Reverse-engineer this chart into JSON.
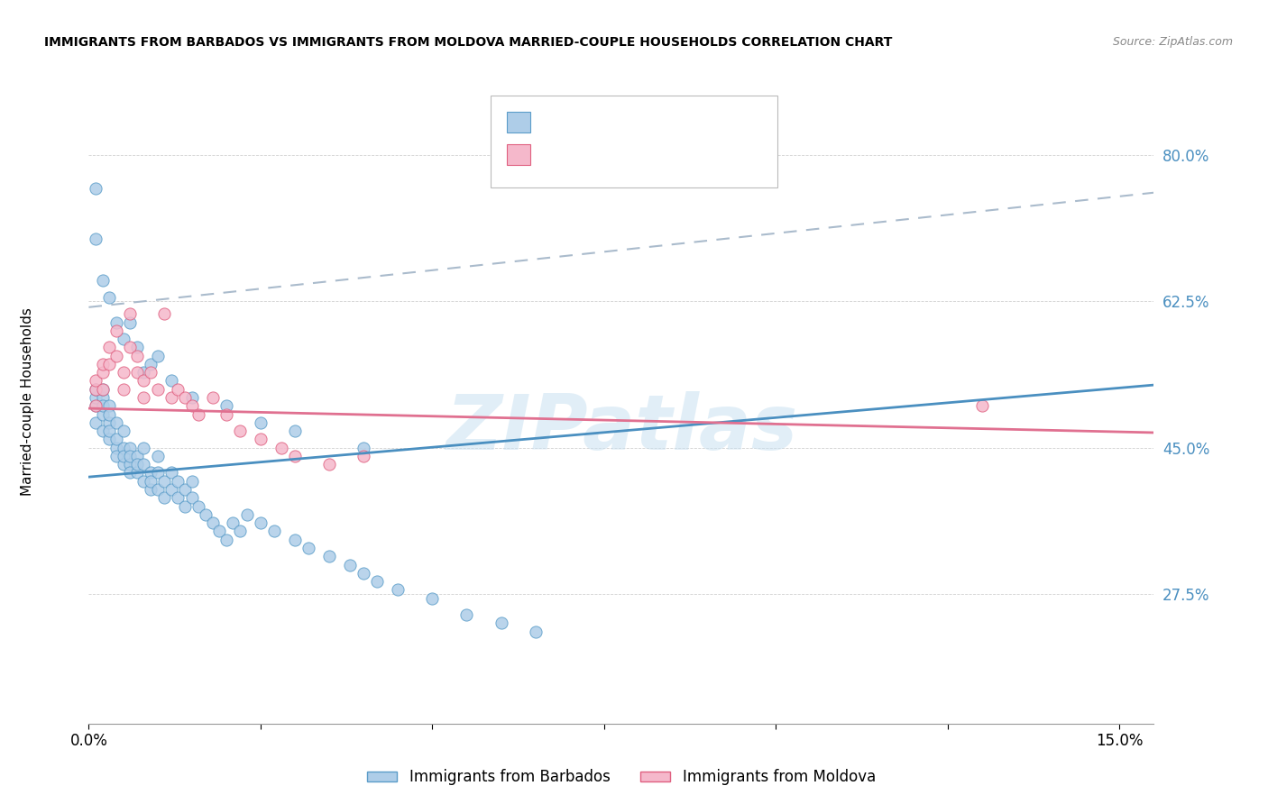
{
  "title": "IMMIGRANTS FROM BARBADOS VS IMMIGRANTS FROM MOLDOVA MARRIED-COUPLE HOUSEHOLDS CORRELATION CHART",
  "source": "Source: ZipAtlas.com",
  "ylabel": "Married-couple Households",
  "xlim": [
    0.0,
    0.155
  ],
  "ylim": [
    0.12,
    0.87
  ],
  "yticks": [
    0.275,
    0.45,
    0.625,
    0.8
  ],
  "ytick_labels": [
    "27.5%",
    "45.0%",
    "62.5%",
    "80.0%"
  ],
  "xticks": [
    0.0,
    0.025,
    0.05,
    0.075,
    0.1,
    0.125,
    0.15
  ],
  "xtick_labels": [
    "0.0%",
    "",
    "",
    "",
    "",
    "",
    "15.0%"
  ],
  "legend_label1": "Immigrants from Barbados",
  "legend_label2": "Immigrants from Moldova",
  "color_blue_fill": "#aecde8",
  "color_blue_edge": "#5b9dc9",
  "color_pink_fill": "#f5b8cb",
  "color_pink_edge": "#e06080",
  "color_blue_line": "#4a8fc0",
  "color_pink_line": "#e07090",
  "color_dashed": "#aabbcc",
  "color_ytick": "#4a8fc0",
  "watermark_color": "#c5dff0",
  "background": "#ffffff",
  "blue_line_x0": 0.0,
  "blue_line_y0": 0.415,
  "blue_line_x1": 0.155,
  "blue_line_y1": 0.525,
  "pink_line_x0": 0.0,
  "pink_line_y0": 0.497,
  "pink_line_x1": 0.155,
  "pink_line_y1": 0.468,
  "dash_line_x0": 0.0,
  "dash_line_y0": 0.618,
  "dash_line_x1": 0.155,
  "dash_line_y1": 0.755,
  "barbados_x": [
    0.001,
    0.001,
    0.001,
    0.001,
    0.002,
    0.002,
    0.002,
    0.002,
    0.002,
    0.003,
    0.003,
    0.003,
    0.003,
    0.003,
    0.004,
    0.004,
    0.004,
    0.004,
    0.005,
    0.005,
    0.005,
    0.005,
    0.006,
    0.006,
    0.006,
    0.006,
    0.007,
    0.007,
    0.007,
    0.008,
    0.008,
    0.008,
    0.009,
    0.009,
    0.009,
    0.01,
    0.01,
    0.01,
    0.011,
    0.011,
    0.012,
    0.012,
    0.013,
    0.013,
    0.014,
    0.014,
    0.015,
    0.015,
    0.016,
    0.017,
    0.018,
    0.019,
    0.02,
    0.021,
    0.022,
    0.023,
    0.025,
    0.027,
    0.03,
    0.032,
    0.035,
    0.038,
    0.04,
    0.042,
    0.045,
    0.05,
    0.055,
    0.06,
    0.065,
    0.001,
    0.001,
    0.002,
    0.003,
    0.004,
    0.005,
    0.006,
    0.007,
    0.008,
    0.009,
    0.01,
    0.012,
    0.015,
    0.02,
    0.025,
    0.03,
    0.04
  ],
  "barbados_y": [
    0.5,
    0.48,
    0.51,
    0.52,
    0.49,
    0.47,
    0.51,
    0.5,
    0.52,
    0.48,
    0.5,
    0.46,
    0.49,
    0.47,
    0.45,
    0.48,
    0.46,
    0.44,
    0.43,
    0.45,
    0.44,
    0.47,
    0.43,
    0.45,
    0.44,
    0.42,
    0.42,
    0.44,
    0.43,
    0.41,
    0.43,
    0.45,
    0.42,
    0.4,
    0.41,
    0.4,
    0.42,
    0.44,
    0.41,
    0.39,
    0.4,
    0.42,
    0.39,
    0.41,
    0.38,
    0.4,
    0.39,
    0.41,
    0.38,
    0.37,
    0.36,
    0.35,
    0.34,
    0.36,
    0.35,
    0.37,
    0.36,
    0.35,
    0.34,
    0.33,
    0.32,
    0.31,
    0.3,
    0.29,
    0.28,
    0.27,
    0.25,
    0.24,
    0.23,
    0.76,
    0.7,
    0.65,
    0.63,
    0.6,
    0.58,
    0.6,
    0.57,
    0.54,
    0.55,
    0.56,
    0.53,
    0.51,
    0.5,
    0.48,
    0.47,
    0.45
  ],
  "moldova_x": [
    0.001,
    0.001,
    0.001,
    0.002,
    0.002,
    0.002,
    0.003,
    0.003,
    0.004,
    0.004,
    0.005,
    0.005,
    0.006,
    0.006,
    0.007,
    0.007,
    0.008,
    0.008,
    0.009,
    0.01,
    0.011,
    0.012,
    0.013,
    0.014,
    0.015,
    0.016,
    0.018,
    0.02,
    0.022,
    0.025,
    0.028,
    0.03,
    0.035,
    0.04,
    0.13
  ],
  "moldova_y": [
    0.52,
    0.5,
    0.53,
    0.54,
    0.52,
    0.55,
    0.57,
    0.55,
    0.59,
    0.56,
    0.54,
    0.52,
    0.61,
    0.57,
    0.56,
    0.54,
    0.53,
    0.51,
    0.54,
    0.52,
    0.61,
    0.51,
    0.52,
    0.51,
    0.5,
    0.49,
    0.51,
    0.49,
    0.47,
    0.46,
    0.45,
    0.44,
    0.43,
    0.44,
    0.5
  ]
}
